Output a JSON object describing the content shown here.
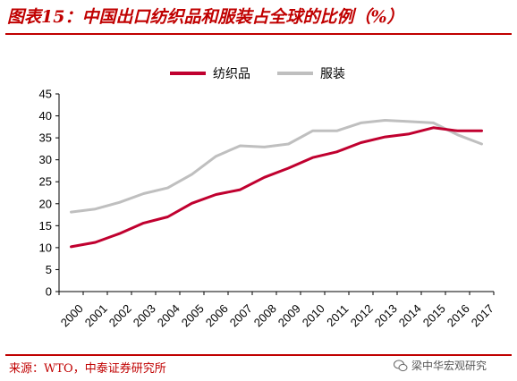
{
  "title": "图表15：中国出口纺织品和服装占全球的比例（%）",
  "source": "来源：WTO，中泰证券研究所",
  "watermark": "梁中华宏观研究",
  "colors": {
    "brand": "#c00000",
    "textile": "#c0002f",
    "apparel": "#bfbfbf"
  },
  "chart_data": {
    "type": "line",
    "x": [
      "2000",
      "2001",
      "2002",
      "2003",
      "2004",
      "2005",
      "2006",
      "2007",
      "2008",
      "2009",
      "2010",
      "2011",
      "2012",
      "2013",
      "2014",
      "2015",
      "2016",
      "2017"
    ],
    "series": [
      {
        "name": "纺织品",
        "color": "#c0002f",
        "values": [
          10.2,
          11.2,
          13.2,
          15.6,
          17.0,
          20.1,
          22.1,
          23.2,
          26.0,
          28.1,
          30.5,
          31.8,
          33.9,
          35.2,
          35.9,
          37.3,
          36.6,
          36.6
        ]
      },
      {
        "name": "服装",
        "color": "#bfbfbf",
        "values": [
          18.1,
          18.8,
          20.3,
          22.3,
          23.6,
          26.7,
          30.8,
          33.2,
          32.9,
          33.6,
          36.6,
          36.6,
          38.4,
          39.0,
          38.7,
          38.4,
          35.7,
          33.6
        ]
      }
    ],
    "ylim": [
      0,
      45
    ],
    "yticks": [
      0,
      5,
      10,
      15,
      20,
      25,
      30,
      35,
      40,
      45
    ],
    "legend": "top-center",
    "grid": false,
    "xlabel": "",
    "ylabel": ""
  }
}
